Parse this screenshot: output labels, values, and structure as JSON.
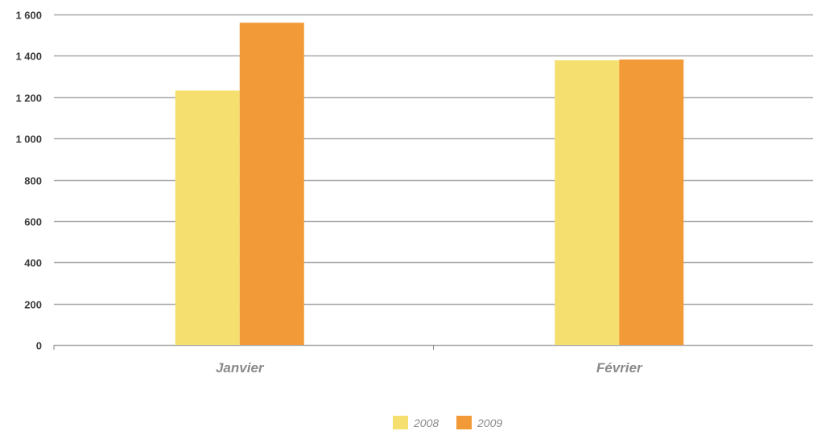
{
  "chart_data": {
    "type": "bar",
    "categories": [
      "Janvier",
      "Février"
    ],
    "series": [
      {
        "name": "2008",
        "values": [
          1232,
          1378
        ],
        "color": "#f5df6e"
      },
      {
        "name": "2009",
        "values": [
          1560,
          1382
        ],
        "color": "#f29a38"
      }
    ],
    "ylim": [
      0,
      1600
    ],
    "yticks": [
      0,
      200,
      400,
      600,
      800,
      1000,
      1200,
      1400,
      1600
    ],
    "ytick_labels": [
      "0",
      "200",
      "400",
      "600",
      "800",
      "1 000",
      "1 200",
      "1 400",
      "1 600"
    ],
    "grid": true,
    "legend_position": "bottom-center",
    "title": "",
    "xlabel": "",
    "ylabel": "",
    "gridline_color": "#a8a8a8"
  }
}
